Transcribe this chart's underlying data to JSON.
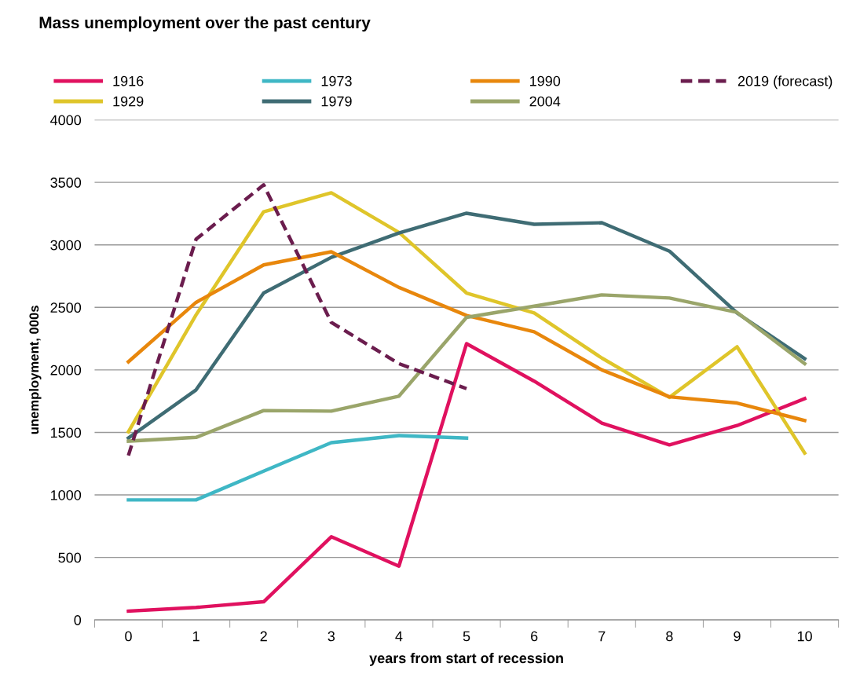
{
  "chart_data": {
    "type": "line",
    "title": "Mass unemployment over the past century",
    "xlabel": "years from start of recession",
    "ylabel": "unemployment, 000s",
    "categories": [
      "0",
      "1",
      "2",
      "3",
      "4",
      "5",
      "6",
      "7",
      "8",
      "9",
      "10"
    ],
    "series": [
      {
        "name": "1916",
        "color": "#e0115f",
        "values": [
          70,
          100,
          145,
          665,
          430,
          2210,
          1910,
          1575,
          1400,
          1555,
          1770
        ]
      },
      {
        "name": "1929",
        "color": "#dfc52a",
        "values": [
          1505,
          2440,
          3265,
          3417,
          3100,
          2615,
          2455,
          2095,
          1780,
          2185,
          1335
        ]
      },
      {
        "name": "1973",
        "color": "#3fb7c5",
        "values": [
          960,
          960,
          1190,
          1418,
          1475,
          1455,
          null,
          null,
          null,
          null,
          null
        ]
      },
      {
        "name": "1979",
        "color": "#3f6c74",
        "values": [
          1455,
          1840,
          2615,
          2900,
          3095,
          3253,
          3165,
          3177,
          2950,
          2455,
          2090
        ]
      },
      {
        "name": "1990",
        "color": "#e8870c",
        "values": [
          2065,
          2540,
          2840,
          2945,
          2660,
          2435,
          2305,
          2000,
          1785,
          1735,
          1595
        ]
      },
      {
        "name": "2004",
        "color": "#9aa56a",
        "values": [
          1430,
          1460,
          1675,
          1670,
          1790,
          2420,
          2510,
          2600,
          2575,
          2460,
          2050
        ]
      },
      {
        "name": "2019 (forecast)",
        "color": "#6b1d4e",
        "line_style": "dashed",
        "values": [
          1315,
          3045,
          3480,
          2380,
          2050,
          1850,
          null,
          null,
          null,
          null,
          null
        ]
      }
    ],
    "ylim": [
      0,
      4000
    ],
    "yticks": [
      0,
      500,
      1000,
      1500,
      2000,
      2500,
      3000,
      3500,
      4000
    ],
    "grid": "y",
    "legend": "top",
    "marker": "none",
    "line_style": "solid"
  }
}
